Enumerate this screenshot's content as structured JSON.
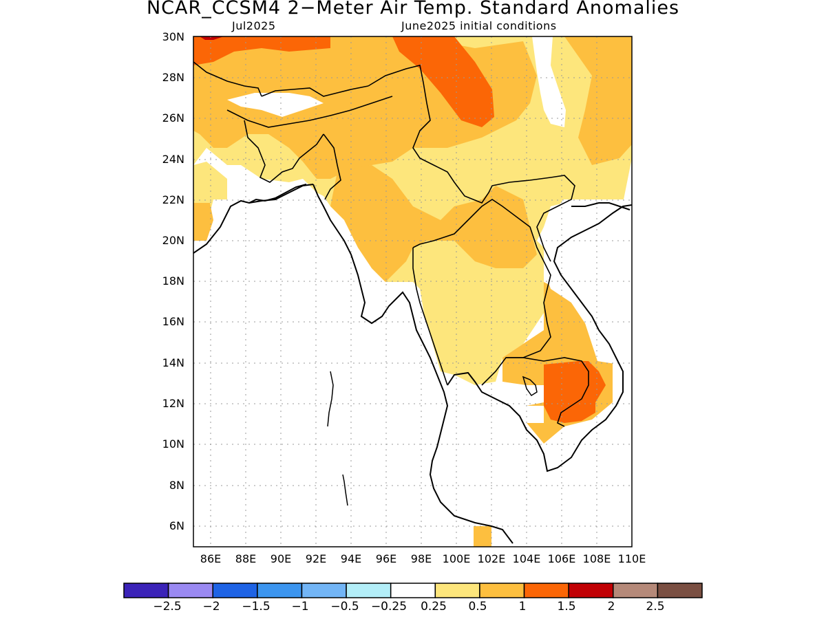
{
  "header": {
    "title": "NCAR_CCSM4 2−Meter Air Temp. Standard Anomalies",
    "valid_month": "Jul2025",
    "init": "June2025 initial conditions"
  },
  "map": {
    "lat_labels": [
      "30N",
      "28N",
      "26N",
      "24N",
      "22N",
      "20N",
      "18N",
      "16N",
      "14N",
      "12N",
      "10N",
      "8N",
      "6N"
    ],
    "lon_labels": [
      "86E",
      "88E",
      "90E",
      "92E",
      "94E",
      "96E",
      "98E",
      "100E",
      "102E",
      "104E",
      "106E",
      "108E",
      "110E"
    ],
    "lat_range": [
      5,
      30
    ],
    "lon_range": [
      85,
      110
    ],
    "gridlines": true
  },
  "colorbar": {
    "colors": [
      "#3b23b8",
      "#9a89f2",
      "#1e63e5",
      "#3c95ef",
      "#72b5f6",
      "#b3eef8",
      "#ffffff",
      "#fde67c",
      "#fdbf3f",
      "#fb6606",
      "#c10004",
      "#b58979",
      "#7a4f42"
    ],
    "labels": [
      "−2.5",
      "−2",
      "−1.5",
      "−1",
      "−0.5",
      "−0.25",
      "0.25",
      "0.5",
      "1",
      "1.5",
      "2",
      "2.5"
    ]
  },
  "palette": {
    "anom_0_25_0_5": "#fde67c",
    "anom_0_5_1": "#fdbf3f",
    "anom_1_1_5": "#fb6606",
    "anom_1_5_2": "#c10004"
  }
}
